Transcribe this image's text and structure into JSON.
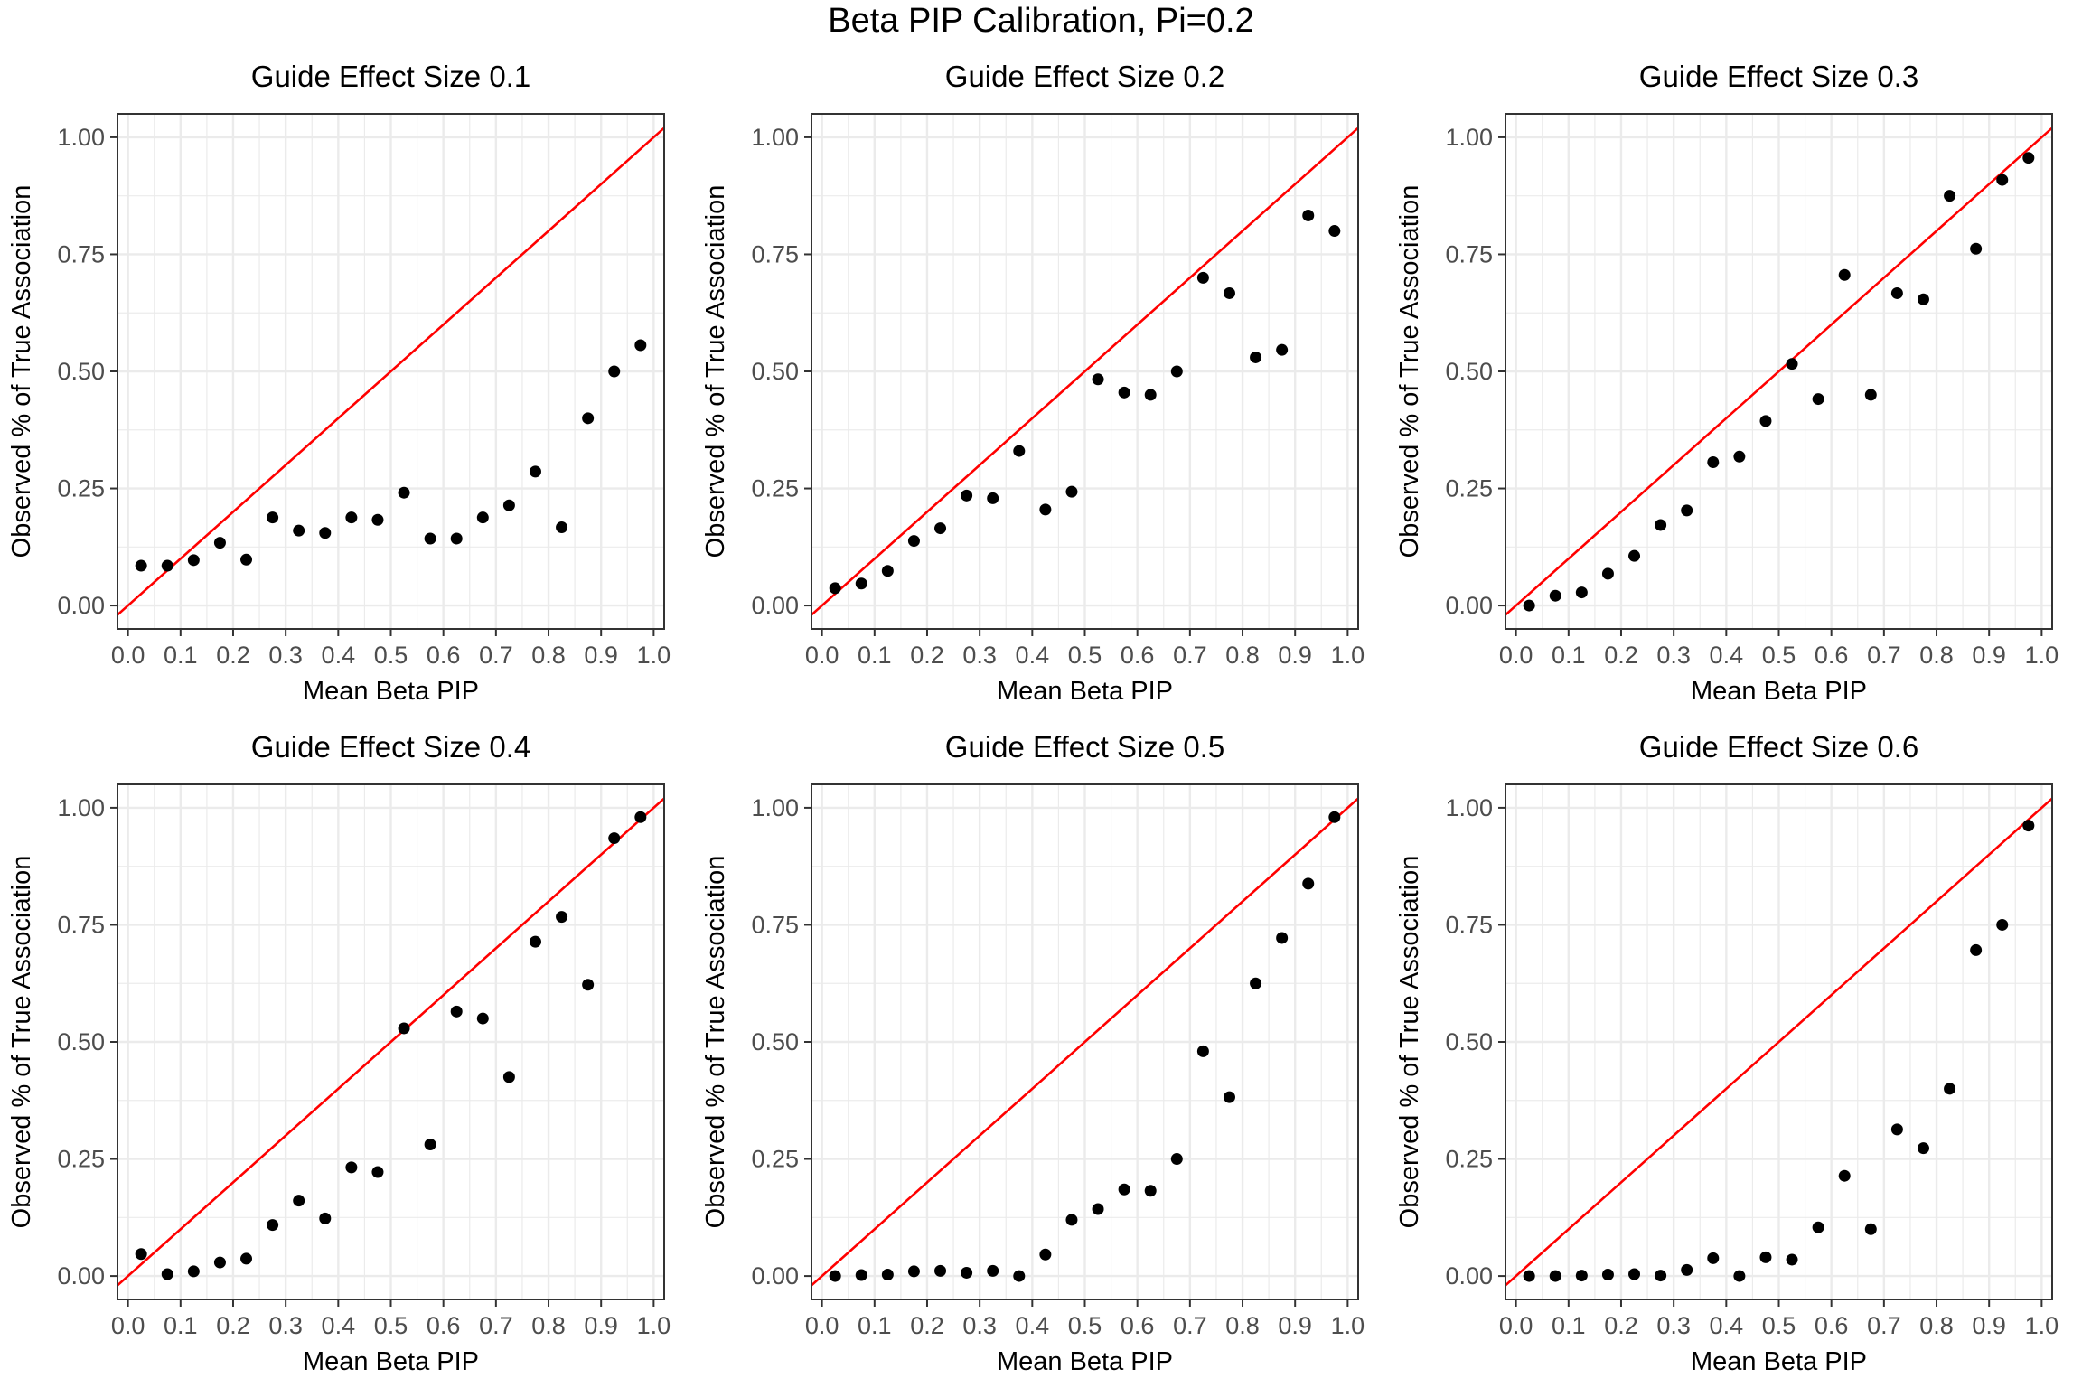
{
  "figure": {
    "title": "Beta PIP Calibration, Pi=0.2"
  },
  "style": {
    "reference_line_color": "#ff0000",
    "point_color": "#000000",
    "grid_color": "#ebebeb",
    "panel_border_color": "#333333"
  },
  "chart_data": [
    {
      "type": "scatter",
      "title": "Guide Effect Size 0.1",
      "xlabel": "Mean Beta PIP",
      "ylabel": "Observed % of True Association",
      "xlim": [
        -0.02,
        1.02
      ],
      "ylim": [
        -0.05,
        1.05
      ],
      "xticks": [
        "0.0",
        "0.1",
        "0.2",
        "0.3",
        "0.4",
        "0.5",
        "0.6",
        "0.7",
        "0.8",
        "0.9",
        "1.0"
      ],
      "yticks": [
        "0.00",
        "0.25",
        "0.50",
        "0.75",
        "1.00"
      ],
      "reference_line": "y = x",
      "grid": true,
      "x": [
        0.025,
        0.075,
        0.125,
        0.175,
        0.225,
        0.275,
        0.325,
        0.375,
        0.425,
        0.475,
        0.525,
        0.575,
        0.625,
        0.675,
        0.725,
        0.775,
        0.825,
        0.875,
        0.925,
        0.975
      ],
      "y": [
        0.085,
        0.085,
        0.097,
        0.134,
        0.098,
        0.188,
        0.16,
        0.155,
        0.188,
        0.183,
        0.241,
        0.143,
        0.143,
        0.188,
        0.214,
        0.286,
        0.167,
        0.4,
        0.5,
        0.556
      ]
    },
    {
      "type": "scatter",
      "title": "Guide Effect Size 0.2",
      "xlabel": "Mean Beta PIP",
      "ylabel": "Observed % of True Association",
      "xlim": [
        -0.02,
        1.02
      ],
      "ylim": [
        -0.05,
        1.05
      ],
      "xticks": [
        "0.0",
        "0.1",
        "0.2",
        "0.3",
        "0.4",
        "0.5",
        "0.6",
        "0.7",
        "0.8",
        "0.9",
        "1.0"
      ],
      "yticks": [
        "0.00",
        "0.25",
        "0.50",
        "0.75",
        "1.00"
      ],
      "reference_line": "y = x",
      "grid": true,
      "x": [
        0.025,
        0.075,
        0.125,
        0.175,
        0.225,
        0.275,
        0.325,
        0.375,
        0.425,
        0.475,
        0.525,
        0.575,
        0.625,
        0.675,
        0.725,
        0.775,
        0.825,
        0.875,
        0.925,
        0.975
      ],
      "y": [
        0.037,
        0.047,
        0.074,
        0.138,
        0.165,
        0.235,
        0.229,
        0.33,
        0.205,
        0.243,
        0.483,
        0.455,
        0.45,
        0.5,
        0.7,
        0.667,
        0.53,
        0.546,
        0.833,
        0.8
      ]
    },
    {
      "type": "scatter",
      "title": "Guide Effect Size 0.3",
      "xlabel": "Mean Beta PIP",
      "ylabel": "Observed % of True Association",
      "xlim": [
        -0.02,
        1.02
      ],
      "ylim": [
        -0.05,
        1.05
      ],
      "xticks": [
        "0.0",
        "0.1",
        "0.2",
        "0.3",
        "0.4",
        "0.5",
        "0.6",
        "0.7",
        "0.8",
        "0.9",
        "1.0"
      ],
      "yticks": [
        "0.00",
        "0.25",
        "0.50",
        "0.75",
        "1.00"
      ],
      "reference_line": "y = x",
      "grid": true,
      "x": [
        0.025,
        0.075,
        0.125,
        0.175,
        0.225,
        0.275,
        0.325,
        0.375,
        0.425,
        0.475,
        0.525,
        0.575,
        0.625,
        0.675,
        0.725,
        0.775,
        0.825,
        0.875,
        0.925,
        0.975
      ],
      "y": [
        0.0,
        0.021,
        0.028,
        0.068,
        0.106,
        0.172,
        0.203,
        0.306,
        0.318,
        0.394,
        0.516,
        0.441,
        0.706,
        0.45,
        0.667,
        0.654,
        0.875,
        0.762,
        0.909,
        0.956
      ]
    },
    {
      "type": "scatter",
      "title": "Guide Effect Size 0.4",
      "xlabel": "Mean Beta PIP",
      "ylabel": "Observed % of True Association",
      "xlim": [
        -0.02,
        1.02
      ],
      "ylim": [
        -0.05,
        1.05
      ],
      "xticks": [
        "0.0",
        "0.1",
        "0.2",
        "0.3",
        "0.4",
        "0.5",
        "0.6",
        "0.7",
        "0.8",
        "0.9",
        "1.0"
      ],
      "yticks": [
        "0.00",
        "0.25",
        "0.50",
        "0.75",
        "1.00"
      ],
      "reference_line": "y = x",
      "grid": true,
      "x": [
        0.025,
        0.075,
        0.125,
        0.175,
        0.225,
        0.275,
        0.325,
        0.375,
        0.425,
        0.475,
        0.525,
        0.575,
        0.625,
        0.675,
        0.725,
        0.775,
        0.825,
        0.875,
        0.925,
        0.975
      ],
      "y": [
        0.047,
        0.004,
        0.01,
        0.029,
        0.037,
        0.109,
        0.161,
        0.123,
        0.232,
        0.222,
        0.529,
        0.281,
        0.565,
        0.55,
        0.425,
        0.714,
        0.767,
        0.622,
        0.935,
        0.98
      ]
    },
    {
      "type": "scatter",
      "title": "Guide Effect Size 0.5",
      "xlabel": "Mean Beta PIP",
      "ylabel": "Observed % of True Association",
      "xlim": [
        -0.02,
        1.02
      ],
      "ylim": [
        -0.05,
        1.05
      ],
      "xticks": [
        "0.0",
        "0.1",
        "0.2",
        "0.3",
        "0.4",
        "0.5",
        "0.6",
        "0.7",
        "0.8",
        "0.9",
        "1.0"
      ],
      "yticks": [
        "0.00",
        "0.25",
        "0.50",
        "0.75",
        "1.00"
      ],
      "reference_line": "y = x",
      "grid": true,
      "x": [
        0.025,
        0.075,
        0.125,
        0.175,
        0.225,
        0.275,
        0.325,
        0.375,
        0.425,
        0.475,
        0.525,
        0.575,
        0.625,
        0.675,
        0.725,
        0.775,
        0.825,
        0.875,
        0.925,
        0.975
      ],
      "y": [
        0.0,
        0.002,
        0.003,
        0.01,
        0.011,
        0.007,
        0.011,
        0.0,
        0.046,
        0.12,
        0.143,
        0.185,
        0.182,
        0.25,
        0.48,
        0.382,
        0.625,
        0.722,
        0.838,
        0.98
      ]
    },
    {
      "type": "scatter",
      "title": "Guide Effect Size 0.6",
      "xlabel": "Mean Beta PIP",
      "ylabel": "Observed % of True Association",
      "xlim": [
        -0.02,
        1.02
      ],
      "ylim": [
        -0.05,
        1.05
      ],
      "xticks": [
        "0.0",
        "0.1",
        "0.2",
        "0.3",
        "0.4",
        "0.5",
        "0.6",
        "0.7",
        "0.8",
        "0.9",
        "1.0"
      ],
      "yticks": [
        "0.00",
        "0.25",
        "0.50",
        "0.75",
        "1.00"
      ],
      "reference_line": "y = x",
      "grid": true,
      "x": [
        0.025,
        0.075,
        0.125,
        0.175,
        0.225,
        0.275,
        0.325,
        0.375,
        0.425,
        0.475,
        0.525,
        0.575,
        0.625,
        0.675,
        0.725,
        0.775,
        0.825,
        0.875,
        0.925,
        0.975
      ],
      "y": [
        0.0,
        0.0,
        0.001,
        0.003,
        0.004,
        0.001,
        0.013,
        0.038,
        0.0,
        0.04,
        0.035,
        0.104,
        0.214,
        0.1,
        0.313,
        0.273,
        0.4,
        0.696,
        0.75,
        0.962
      ]
    }
  ]
}
